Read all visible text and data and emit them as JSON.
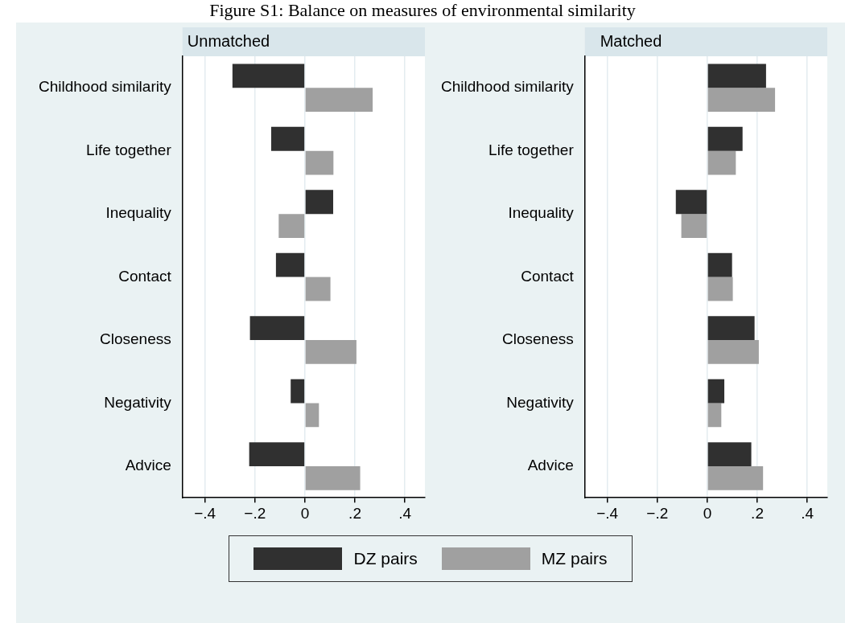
{
  "chart_data": [
    {
      "type": "bar",
      "orientation": "horizontal",
      "title": "Unmatched",
      "annotations": [
        "Figure S1: Balance on measures of environmental similarity"
      ],
      "categories": [
        "Childhood similarity",
        "Life together",
        "Inequality",
        "Contact",
        "Closeness",
        "Negativity",
        "Advice"
      ],
      "series": [
        {
          "name": "DZ pairs",
          "color": "#303030",
          "values": [
            -0.29,
            -0.135,
            0.113,
            -0.116,
            -0.22,
            -0.057,
            -0.223
          ]
        },
        {
          "name": "MZ pairs",
          "color": "#a0a0a0",
          "values": [
            0.271,
            0.114,
            -0.105,
            0.102,
            0.206,
            0.056,
            0.221
          ]
        }
      ],
      "xlim": [
        -0.49,
        0.48
      ],
      "xticks": [
        {
          "value": -0.4,
          "label": "−.4"
        },
        {
          "value": -0.2,
          "label": "−.2"
        },
        0,
        {
          "value": 0.2,
          "label": ".2"
        },
        {
          "value": 0.4,
          "label": ".4"
        }
      ],
      "grid": "x",
      "legend": "bottom"
    },
    {
      "type": "bar",
      "orientation": "horizontal",
      "title": "Matched",
      "categories": [
        "Childhood similarity",
        "Life together",
        "Inequality",
        "Contact",
        "Closeness",
        "Negativity",
        "Advice"
      ],
      "series": [
        {
          "color": "#303030",
          "values": [
            0.235,
            0.141,
            -0.126,
            0.099,
            0.189,
            0.068,
            0.176
          ]
        },
        {
          "color": "#a0a0a0",
          "values": [
            0.271,
            0.114,
            -0.104,
            0.102,
            0.206,
            0.056,
            0.223
          ]
        }
      ],
      "xlim": [
        -0.49,
        0.48
      ],
      "xticks": [
        {
          "value": -0.4,
          "label": "−.4"
        },
        {
          "value": -0.2,
          "label": "−.2"
        },
        0,
        {
          "value": 0.2,
          "label": ".2"
        },
        {
          "value": 0.4,
          "label": ".4"
        }
      ],
      "grid": "x"
    }
  ]
}
